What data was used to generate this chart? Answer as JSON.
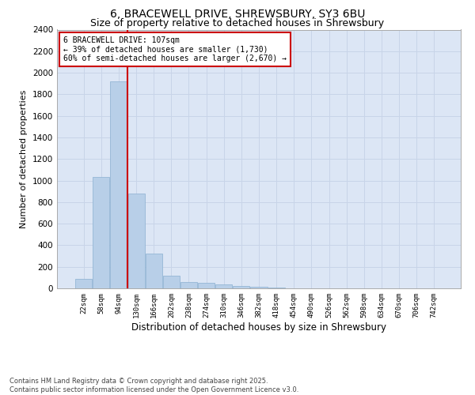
{
  "title_line1": "6, BRACEWELL DRIVE, SHREWSBURY, SY3 6BU",
  "title_line2": "Size of property relative to detached houses in Shrewsbury",
  "xlabel": "Distribution of detached houses by size in Shrewsbury",
  "ylabel": "Number of detached properties",
  "bar_color": "#b8cfe8",
  "bar_edge_color": "#8aafd0",
  "categories": [
    "22sqm",
    "58sqm",
    "94sqm",
    "130sqm",
    "166sqm",
    "202sqm",
    "238sqm",
    "274sqm",
    "310sqm",
    "346sqm",
    "382sqm",
    "418sqm",
    "454sqm",
    "490sqm",
    "526sqm",
    "562sqm",
    "598sqm",
    "634sqm",
    "670sqm",
    "706sqm",
    "742sqm"
  ],
  "values": [
    85,
    1030,
    1920,
    880,
    320,
    115,
    55,
    48,
    35,
    20,
    12,
    5,
    0,
    0,
    0,
    0,
    0,
    0,
    0,
    0,
    0
  ],
  "ylim": [
    0,
    2400
  ],
  "yticks": [
    0,
    200,
    400,
    600,
    800,
    1000,
    1200,
    1400,
    1600,
    1800,
    2000,
    2200,
    2400
  ],
  "vline_color": "#cc0000",
  "annotation_title": "6 BRACEWELL DRIVE: 107sqm",
  "annotation_line2": "← 39% of detached houses are smaller (1,730)",
  "annotation_line3": "60% of semi-detached houses are larger (2,670) →",
  "annotation_box_color": "#cc0000",
  "annotation_bg": "#ffffff",
  "grid_color": "#c8d4e8",
  "background_color": "#dce6f5",
  "footer_line1": "Contains HM Land Registry data © Crown copyright and database right 2025.",
  "footer_line2": "Contains public sector information licensed under the Open Government Licence v3.0.",
  "title_fontsize": 10,
  "subtitle_fontsize": 9
}
